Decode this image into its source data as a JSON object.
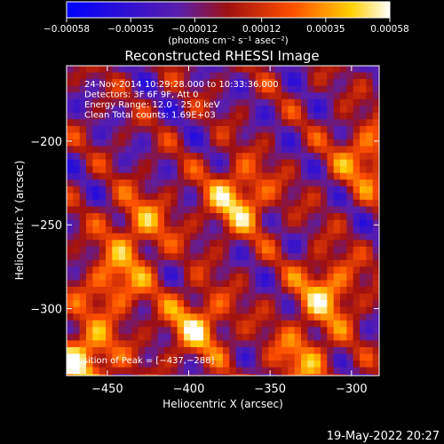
{
  "chart_data": {
    "type": "heatmap",
    "title": "Reconstructed RHESSI Image",
    "xlabel": "Heliocentric X (arcsec)",
    "ylabel": "Heliocentric Y (arcsec)",
    "xlim": [
      -475,
      -283
    ],
    "ylim": [
      -340,
      -155
    ],
    "x_ticks": [
      -450,
      -400,
      -350,
      -300
    ],
    "x_tick_labels": [
      "−450",
      "−400",
      "−350",
      "−300"
    ],
    "y_ticks": [
      -200,
      -250,
      -300
    ],
    "y_tick_labels": [
      "−200",
      "−250",
      "−300"
    ],
    "colorbar": {
      "range": [
        -0.00058,
        0.00058
      ],
      "ticks": [
        -0.00058,
        -0.00035,
        -0.00012,
        0.00012,
        0.00035,
        0.00058
      ],
      "tick_labels": [
        "−0.00058",
        "−0.00035",
        "−0.00012",
        "0.00012",
        "0.00035",
        "0.00058"
      ],
      "unit_label": "(photons cm⁻² s⁻¹ asec⁻²)",
      "colors": [
        "#0000ff",
        "#5a1eaa",
        "#a01010",
        "#ff5000",
        "#ffd000",
        "#ffffff"
      ]
    },
    "annotations": [
      "24-Nov-2014 10:29:28.000 to 10:33:36.000",
      "Detectors: 3F 6F 9F, Att 0",
      "Energy Range: 12.0 - 25.0 keV",
      "Clean     Total counts: 1.69E+03"
    ],
    "peak_label": "Position of Peak = [−437,−288]",
    "peak": [
      -437,
      -288
    ],
    "sources": [
      {
        "x": -370,
        "y": -235,
        "value": 0.0005
      },
      {
        "x": -465,
        "y": -330,
        "value": 0.00058
      },
      {
        "x": -395,
        "y": -310,
        "value": 0.00045
      },
      {
        "x": -445,
        "y": -285,
        "value": 0.0004
      },
      {
        "x": -315,
        "y": -290,
        "value": 0.00045
      },
      {
        "x": -290,
        "y": -210,
        "value": 0.0004
      },
      {
        "x": -430,
        "y": -250,
        "value": 0.00035
      },
      {
        "x": -330,
        "y": -330,
        "value": 0.00035
      }
    ]
  },
  "footer": {
    "date": "19-May-2022 20:27"
  }
}
